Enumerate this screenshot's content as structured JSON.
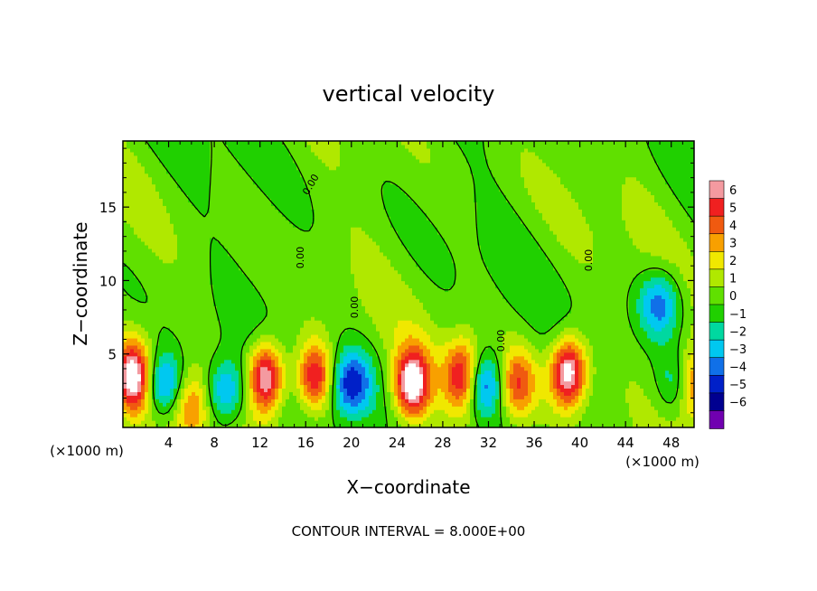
{
  "chart_data": {
    "type": "heatmap",
    "title": "vertical velocity",
    "xlabel": "X−coordinate",
    "ylabel": "Z−coordinate",
    "x_unit": "(×1000 m)",
    "x_unit_right": "(×1000 m)",
    "footer": "CONTOUR INTERVAL = 8.000E+00",
    "xlim": [
      0,
      50
    ],
    "ylim": [
      0,
      19.5
    ],
    "x_ticks": [
      4,
      8,
      12,
      16,
      20,
      24,
      28,
      32,
      36,
      40,
      44,
      48
    ],
    "y_ticks": [
      5,
      10,
      15
    ],
    "colorbar": {
      "levels": [
        6,
        5,
        4,
        3,
        2,
        1,
        0,
        -1,
        -2,
        -3,
        -4,
        -5,
        -6
      ],
      "colors": [
        "#f49aa0",
        "#f02020",
        "#f05a10",
        "#f8a000",
        "#f0e800",
        "#b0e800",
        "#60e000",
        "#20d000",
        "#00d8a0",
        "#00c8f0",
        "#1070e8",
        "#0020c8",
        "#000090",
        "#7000b0"
      ]
    },
    "contour_labels": [
      "0.00",
      "0.00",
      "0.00",
      "0.00",
      "0.00"
    ],
    "features": [
      {
        "kind": "updraft",
        "x": 12.5,
        "z": 3.5,
        "amp": 7.5
      },
      {
        "kind": "updraft",
        "x": 25.3,
        "z": 3.0,
        "amp": 7.5
      },
      {
        "kind": "updraft",
        "x": 39.0,
        "z": 3.8,
        "amp": 7.5
      },
      {
        "kind": "updraft",
        "x": 1.0,
        "z": 3.5,
        "amp": 7.0
      },
      {
        "kind": "updraft",
        "x": 49.8,
        "z": 3.0,
        "amp": 6.5
      },
      {
        "kind": "updraft",
        "x": 34.5,
        "z": 3.0,
        "amp": 4.5
      },
      {
        "kind": "updraft",
        "x": 6.0,
        "z": 1.5,
        "amp": 3.5
      },
      {
        "kind": "updraft",
        "x": 16.8,
        "z": 3.5,
        "amp": 6.0
      },
      {
        "kind": "updraft",
        "x": 29.8,
        "z": 3.5,
        "amp": 6.5
      },
      {
        "kind": "downdraft",
        "x": 3.5,
        "z": 3.0,
        "amp": -4.5
      },
      {
        "kind": "downdraft",
        "x": 9.0,
        "z": 2.5,
        "amp": -4.0
      },
      {
        "kind": "downdraft",
        "x": 20.0,
        "z": 3.0,
        "amp": -5.0
      },
      {
        "kind": "downdraft",
        "x": 31.5,
        "z": 3.0,
        "amp": -5.0
      },
      {
        "kind": "downdraft",
        "x": 47.0,
        "z": 8.5,
        "amp": -4.0
      },
      {
        "kind": "downdraft",
        "x": 49.0,
        "z": 3.0,
        "amp": -4.0
      }
    ]
  }
}
